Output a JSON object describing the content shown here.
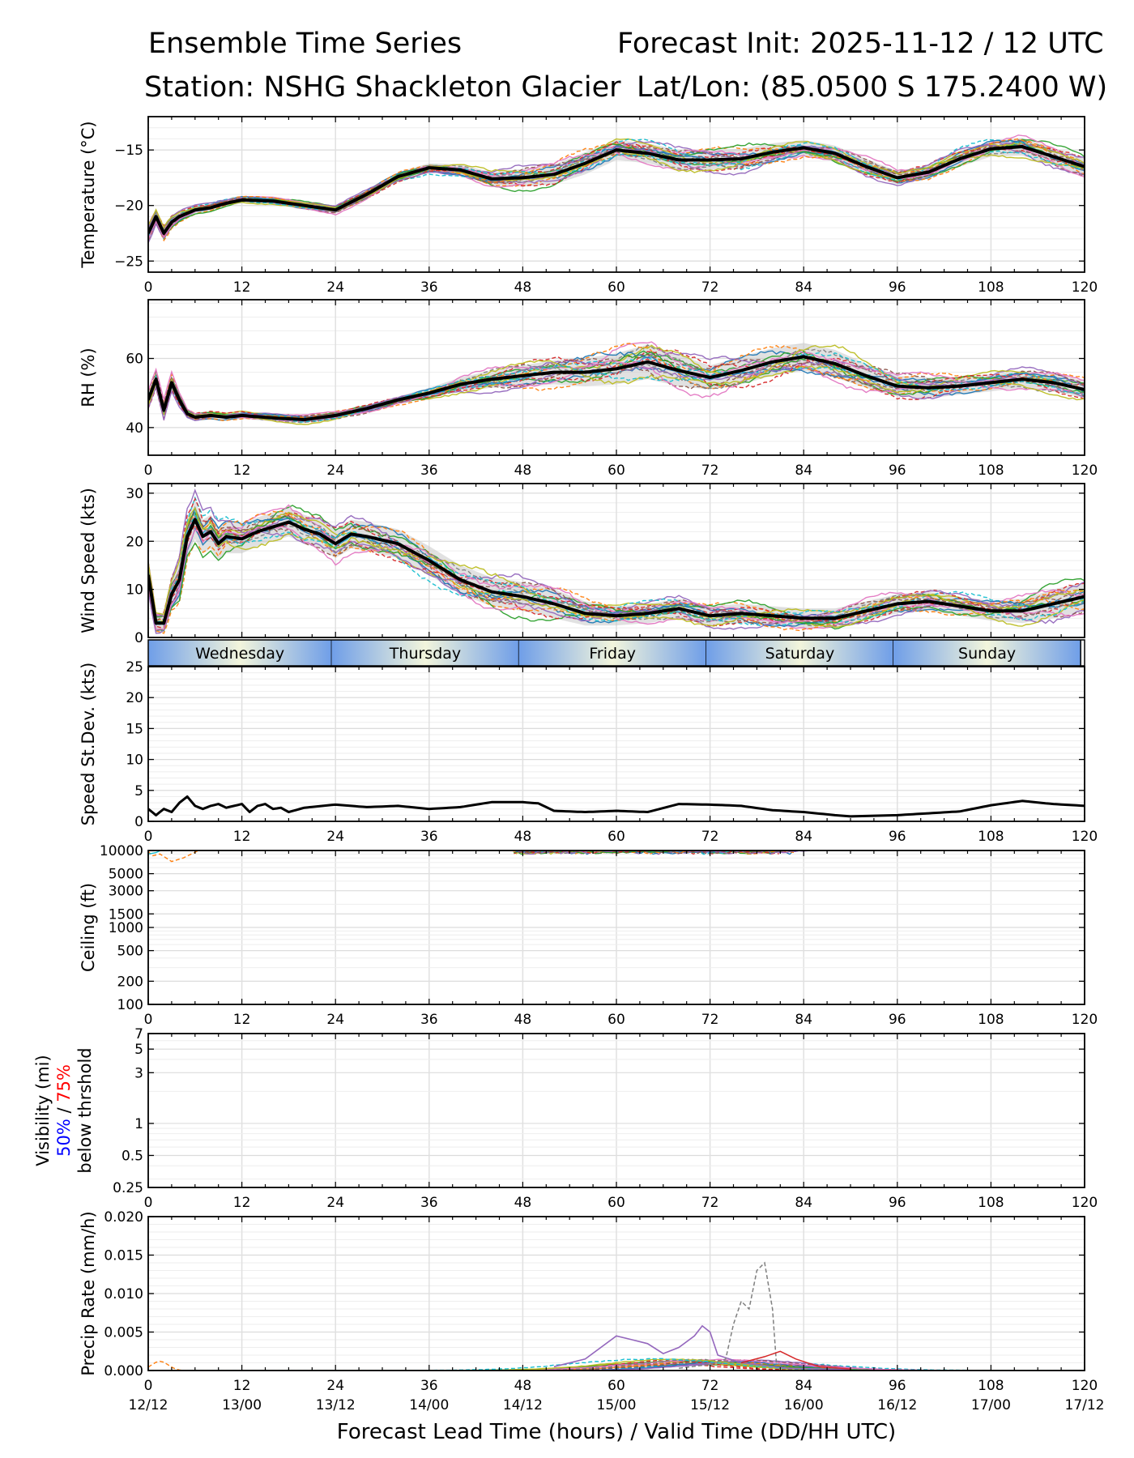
{
  "header": {
    "title": "Ensemble Time Series",
    "init": "Forecast Init: 2025-11-12 / 12 UTC",
    "station": "Station: NSHG Shackleton Glacier",
    "latlon": "Lat/Lon: (85.0500 S 175.2400 W)"
  },
  "colors": {
    "members": [
      "#1f77b4",
      "#ff7f0e",
      "#2ca02c",
      "#d62728",
      "#9467bd",
      "#8c564b",
      "#e377c2",
      "#7f7f7f",
      "#bcbd22",
      "#17becf"
    ],
    "mean": "#000000",
    "spread": "#c8c8c8",
    "vis_50": "#0000ff",
    "vis_75": "#ff0000",
    "day_band_edge": "#6f9ee8",
    "day_band_mid": "#f2f5dc"
  },
  "days": [
    "Wednesday",
    "Thursday",
    "Friday",
    "Saturday",
    "Sunday"
  ],
  "x_axis": {
    "label": "Forecast Lead Time (hours) / Valid Time (DD/HH UTC)",
    "range": [
      0,
      120
    ],
    "ticks": [
      0,
      12,
      24,
      36,
      48,
      60,
      72,
      84,
      96,
      108,
      120
    ],
    "valid_times": [
      "12/12",
      "13/00",
      "13/12",
      "14/00",
      "14/12",
      "15/00",
      "15/12",
      "16/00",
      "16/12",
      "17/00",
      "17/12"
    ]
  },
  "chart_data": [
    {
      "id": "temp",
      "type": "line",
      "ylabel": "Temperature (°C)",
      "ylim": [
        -26,
        -12
      ],
      "yticks": [
        -25,
        -20,
        -15
      ],
      "ytick_labels": [
        "−25",
        "−20",
        "−15"
      ],
      "members_count": 20,
      "x": [
        0,
        1,
        2,
        3,
        4,
        6,
        8,
        10,
        12,
        16,
        20,
        24,
        28,
        32,
        36,
        40,
        44,
        48,
        52,
        56,
        60,
        64,
        68,
        72,
        76,
        80,
        84,
        88,
        92,
        96,
        100,
        104,
        108,
        112,
        116,
        120
      ],
      "mean": [
        -22.5,
        -21,
        -22.5,
        -21.5,
        -21.0,
        -20.4,
        -20.2,
        -19.8,
        -19.5,
        -19.6,
        -20.0,
        -20.4,
        -19.0,
        -17.4,
        -16.6,
        -16.8,
        -17.6,
        -17.5,
        -17.2,
        -16.2,
        -15.0,
        -15.3,
        -15.9,
        -15.9,
        -15.8,
        -15.2,
        -14.8,
        -15.3,
        -16.5,
        -17.5,
        -17.0,
        -15.8,
        -14.9,
        -14.7,
        -15.6,
        -16.5
      ],
      "spread_halfwidth": [
        0.8,
        0.6,
        0.6,
        0.5,
        0.4,
        0.3,
        0.3,
        0.3,
        0.3,
        0.3,
        0.3,
        0.3,
        0.4,
        0.4,
        0.4,
        0.5,
        0.6,
        0.8,
        0.9,
        1.0,
        0.9,
        0.9,
        0.9,
        0.9,
        0.9,
        0.8,
        0.7,
        0.7,
        0.7,
        0.6,
        0.6,
        0.7,
        0.7,
        0.8,
        0.8,
        0.8
      ]
    },
    {
      "id": "rh",
      "type": "line",
      "ylabel": "RH (%)",
      "ylim": [
        32,
        77
      ],
      "yticks": [
        40,
        60
      ],
      "ytick_labels": [
        "40",
        "60"
      ],
      "members_count": 20,
      "x": [
        0,
        1,
        2,
        3,
        4,
        5,
        6,
        8,
        10,
        12,
        16,
        20,
        24,
        28,
        32,
        36,
        40,
        44,
        48,
        52,
        56,
        60,
        64,
        68,
        72,
        76,
        80,
        84,
        88,
        92,
        96,
        100,
        104,
        108,
        112,
        116,
        120
      ],
      "mean": [
        48,
        54,
        45,
        53,
        48,
        44,
        43,
        43.5,
        43,
        43.5,
        42.8,
        42.3,
        43.5,
        45.5,
        48,
        50,
        52.5,
        54,
        55,
        56,
        56,
        57,
        59,
        56.5,
        54.5,
        56.5,
        59,
        60.5,
        58.5,
        55,
        52,
        51.5,
        52,
        53,
        54,
        53,
        51
      ],
      "spread_halfwidth": [
        2,
        2,
        2,
        2,
        1.5,
        1,
        1,
        1,
        1,
        1,
        1,
        1,
        1,
        1,
        1,
        1.5,
        2,
        2.5,
        3,
        3.5,
        4,
        4.5,
        5,
        4.5,
        3.5,
        4,
        4,
        4,
        4,
        3.5,
        3,
        3,
        2.5,
        2.5,
        2.5,
        2.5,
        2.5
      ]
    },
    {
      "id": "wspd",
      "type": "line",
      "ylabel": "Wind Speed (kts)",
      "ylim": [
        0,
        32
      ],
      "yticks": [
        0,
        10,
        20,
        30
      ],
      "ytick_labels": [
        "0",
        "10",
        "20",
        "30"
      ],
      "members_count": 20,
      "x": [
        0,
        1,
        2,
        3,
        4,
        5,
        6,
        7,
        8,
        9,
        10,
        12,
        14,
        16,
        18,
        20,
        22,
        24,
        26,
        28,
        32,
        36,
        40,
        44,
        48,
        52,
        56,
        60,
        64,
        68,
        72,
        76,
        80,
        84,
        88,
        92,
        96,
        100,
        104,
        108,
        112,
        116,
        120
      ],
      "mean": [
        13,
        3,
        3,
        9,
        12,
        21,
        24.5,
        21,
        22,
        19.5,
        21,
        20.5,
        22,
        23,
        24,
        22.5,
        21.5,
        19.5,
        21.5,
        21,
        19.5,
        16,
        12,
        9.5,
        8.5,
        7,
        5,
        4.5,
        5,
        6,
        4.5,
        5,
        4.5,
        4,
        4,
        5.5,
        7,
        7.5,
        6.5,
        5.5,
        5.5,
        7,
        8.5
      ],
      "spread_halfwidth": [
        3,
        2,
        2,
        3,
        4,
        4,
        4,
        3.5,
        3.5,
        3.5,
        3.5,
        3,
        3,
        3,
        3,
        3,
        3,
        3,
        3,
        3,
        3,
        3,
        3,
        3,
        3,
        3,
        2.5,
        2,
        2,
        2,
        2,
        2,
        2,
        2,
        2,
        2,
        2,
        2,
        2,
        2,
        2.5,
        3,
        3
      ]
    },
    {
      "id": "stdev",
      "type": "line",
      "ylabel": "Speed St.Dev. (kts)",
      "ylim": [
        0,
        25
      ],
      "yticks": [
        0,
        5,
        10,
        15,
        20,
        25
      ],
      "ytick_labels": [
        "0",
        "5",
        "10",
        "15",
        "20",
        "25"
      ],
      "x": [
        0,
        1,
        2,
        3,
        4,
        5,
        6,
        7,
        8,
        9,
        10,
        11,
        12,
        13,
        14,
        15,
        16,
        17,
        18,
        20,
        24,
        28,
        32,
        36,
        40,
        44,
        48,
        50,
        52,
        56,
        60,
        64,
        68,
        72,
        76,
        80,
        84,
        88,
        90,
        96,
        100,
        104,
        108,
        112,
        116,
        120
      ],
      "values": [
        2,
        1,
        2,
        1.5,
        3,
        4,
        2.5,
        2,
        2.5,
        2.8,
        2.2,
        2.5,
        2.8,
        1.5,
        2.5,
        2.8,
        2,
        2.2,
        1.5,
        2.2,
        2.7,
        2.3,
        2.5,
        2,
        2.3,
        3.1,
        3.1,
        2.9,
        1.7,
        1.5,
        1.7,
        1.5,
        2.8,
        2.7,
        2.5,
        1.8,
        1.5,
        1.0,
        0.8,
        1.0,
        1.3,
        1.6,
        2.6,
        3.3,
        2.8,
        2.5
      ]
    },
    {
      "id": "ceiling",
      "type": "line",
      "ylabel": "Ceiling (ft)",
      "scale": "log",
      "ylim": [
        100,
        10000
      ],
      "yticks": [
        100,
        200,
        500,
        1000,
        1500,
        3000,
        5000,
        10000
      ],
      "ytick_labels": [
        "100",
        "200",
        "500",
        "1000",
        "1500",
        "3000",
        "5000",
        "10000"
      ]
    },
    {
      "id": "vis",
      "type": "line",
      "ylabel": "Visibility (mi)",
      "ylabel_pct_50": "50%",
      "ylabel_sep": " / ",
      "ylabel_pct_75": "75%",
      "ylabel_line3": "below thrshold",
      "scale": "log",
      "ylim": [
        0.25,
        7
      ],
      "yticks": [
        0.25,
        0.5,
        1,
        3,
        5,
        7
      ],
      "ytick_labels": [
        "0.25",
        "0.5",
        "1",
        "3",
        "5",
        "7"
      ]
    },
    {
      "id": "precip",
      "type": "line",
      "ylabel": "Precip Rate (mm/h)",
      "ylim": [
        0,
        0.02
      ],
      "yticks": [
        0,
        0.005,
        0.01,
        0.015,
        0.02
      ],
      "ytick_labels": [
        "0.000",
        "0.005",
        "0.010",
        "0.015",
        "0.020"
      ],
      "members_count": 20
    }
  ]
}
